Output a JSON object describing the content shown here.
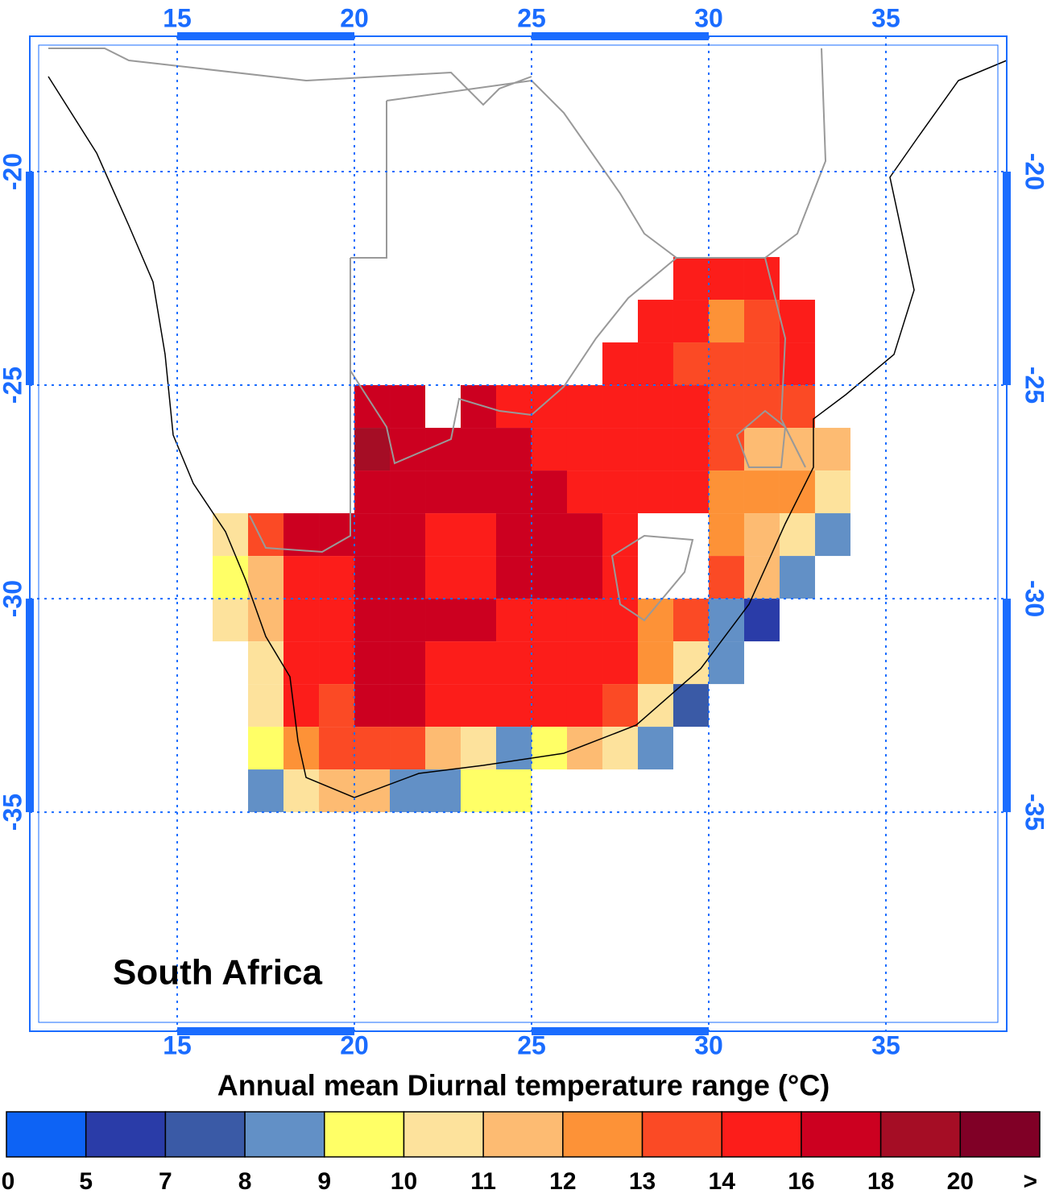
{
  "chart_data": {
    "type": "map",
    "title": "Annual mean Diurnal temperature range (°C)",
    "label": "South Africa",
    "xlim": [
      10.84,
      38.41
    ],
    "ylim": [
      -40.13,
      -16.83
    ],
    "xticks": [
      15,
      20,
      25,
      30,
      35
    ],
    "yticks": [
      -20,
      -25,
      -30,
      -35
    ],
    "grid": true,
    "x": [
      16,
      17,
      18,
      19,
      20,
      21,
      22,
      23,
      24,
      25,
      26,
      27,
      28,
      29,
      30,
      31,
      32,
      33
    ],
    "y": [
      -22,
      -23,
      -24,
      -25,
      -26,
      -27,
      -28,
      -29,
      -30,
      -31,
      -32,
      -33,
      -34
    ],
    "cells": [
      [
        null,
        null,
        null,
        null,
        null,
        null,
        null,
        null,
        null,
        null,
        null,
        null,
        null,
        15,
        15,
        15,
        null,
        null
      ],
      [
        null,
        null,
        null,
        null,
        null,
        null,
        null,
        null,
        null,
        null,
        null,
        null,
        15,
        15,
        12,
        13,
        15,
        null
      ],
      [
        null,
        null,
        null,
        null,
        null,
        null,
        null,
        null,
        null,
        null,
        null,
        15,
        15,
        13,
        13,
        13,
        15,
        null
      ],
      [
        null,
        null,
        null,
        null,
        17,
        17,
        null,
        16,
        15,
        15,
        15,
        15,
        15,
        15,
        13,
        13,
        13,
        null
      ],
      [
        null,
        null,
        null,
        null,
        18,
        16,
        16,
        16,
        16,
        15,
        15,
        15,
        15,
        15,
        13,
        11,
        11,
        11
      ],
      [
        null,
        null,
        null,
        null,
        16,
        16,
        16,
        16,
        16,
        16,
        15,
        15,
        15,
        15,
        12,
        12,
        12,
        10
      ],
      [
        10,
        13,
        16,
        16,
        16,
        16,
        15,
        15,
        16,
        16,
        16,
        15,
        null,
        null,
        12,
        11,
        10,
        8
      ],
      [
        9,
        11,
        15,
        15,
        16,
        16,
        15,
        15,
        16,
        16,
        16,
        15,
        null,
        null,
        13,
        11,
        8,
        null
      ],
      [
        10,
        11,
        15,
        15,
        16,
        16,
        16,
        16,
        15,
        15,
        15,
        15,
        12,
        13,
        8,
        5,
        null,
        null
      ],
      [
        null,
        10,
        14,
        15,
        16,
        16,
        15,
        15,
        15,
        15,
        15,
        15,
        12,
        10,
        8,
        null,
        null,
        null
      ],
      [
        null,
        10,
        14,
        13,
        16,
        16,
        15,
        15,
        15,
        15,
        15,
        13,
        10,
        7,
        null,
        null,
        null,
        null
      ],
      [
        null,
        9,
        12,
        13,
        13,
        13,
        11,
        10,
        8,
        9,
        11,
        10,
        8,
        null,
        null,
        null,
        null,
        null
      ],
      [
        null,
        8,
        10,
        11,
        11,
        8,
        8,
        9,
        9,
        null,
        null,
        null,
        null,
        null,
        null,
        null,
        null,
        null
      ]
    ],
    "colorbar": {
      "levels": [
        0,
        5,
        7,
        8,
        9,
        10,
        11,
        12,
        13,
        14,
        16,
        18,
        20
      ],
      "end_label": ">",
      "colors": [
        "#0d63f5",
        "#2a3ca8",
        "#3a5aa6",
        "#6290c6",
        "#ffff66",
        "#fde29c",
        "#fdbb72",
        "#fd9237",
        "#fb4a25",
        "#fc1d1a",
        "#cc0020",
        "#a50d25",
        "#800026"
      ]
    }
  }
}
